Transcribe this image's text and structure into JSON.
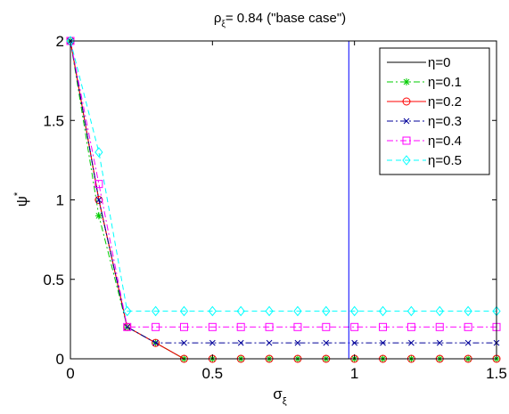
{
  "chart_data": {
    "type": "line",
    "title": "ρξ= 0.84 (\"base case\")",
    "title_parts": {
      "symbol": "ρ",
      "subscript": "ξ",
      "rest": "= 0.84 (\"base case\")"
    },
    "xlabel": "σξ",
    "xlabel_parts": {
      "symbol": "σ",
      "subscript": "ξ"
    },
    "ylabel": "ψ*",
    "ylabel_parts": {
      "symbol": "ψ",
      "superscript": "*"
    },
    "xlim": [
      0,
      1.5
    ],
    "ylim": [
      0,
      2
    ],
    "xticks": [
      0,
      0.5,
      1,
      1.5
    ],
    "xtick_labels": [
      "0",
      "0.5",
      "1",
      "1.5"
    ],
    "yticks": [
      0,
      0.5,
      1,
      1.5,
      2
    ],
    "ytick_labels": [
      "0",
      "0.5",
      "1",
      "1.5",
      "2"
    ],
    "grid": false,
    "legend_position": "top-right",
    "vertical_line": {
      "x": 0.98,
      "color": "#0000ff"
    },
    "x": [
      0,
      0.1,
      0.2,
      0.3,
      0.4,
      0.5,
      0.6,
      0.7,
      0.8,
      0.9,
      1.0,
      1.1,
      1.2,
      1.3,
      1.4,
      1.5
    ],
    "series": [
      {
        "name": "η=0",
        "label_symbol": "η",
        "label_rest": "=0",
        "color": "#000000",
        "line": "solid",
        "marker": "none",
        "values": [
          2,
          1.0,
          0.2,
          0.1,
          0,
          0,
          0,
          0,
          0,
          0,
          0,
          0,
          0,
          0,
          0,
          0
        ]
      },
      {
        "name": "η=0.1",
        "label_symbol": "η",
        "label_rest": "=0.1",
        "color": "#00cc00",
        "line": "dashdot",
        "marker": "star",
        "values": [
          2,
          0.9,
          0.2,
          0.1,
          0,
          0,
          0,
          0,
          0,
          0,
          0,
          0,
          0,
          0,
          0,
          0
        ]
      },
      {
        "name": "η=0.2",
        "label_symbol": "η",
        "label_rest": "=0.2",
        "color": "#ff0000",
        "line": "solid",
        "marker": "circle",
        "values": [
          2,
          1.0,
          0.2,
          0.1,
          0,
          0,
          0,
          0,
          0,
          0,
          0,
          0,
          0,
          0,
          0,
          0
        ]
      },
      {
        "name": "η=0.3",
        "label_symbol": "η",
        "label_rest": "=0.3",
        "color": "#000099",
        "line": "dashdot",
        "marker": "x",
        "values": [
          2,
          1.0,
          0.2,
          0.1,
          0.1,
          0.1,
          0.1,
          0.1,
          0.1,
          0.1,
          0.1,
          0.1,
          0.1,
          0.1,
          0.1,
          0.1
        ]
      },
      {
        "name": "η=0.4",
        "label_symbol": "η",
        "label_rest": "=0.4",
        "color": "#ff00ff",
        "line": "dashdot",
        "marker": "square",
        "values": [
          2,
          1.1,
          0.2,
          0.2,
          0.2,
          0.2,
          0.2,
          0.2,
          0.2,
          0.2,
          0.2,
          0.2,
          0.2,
          0.2,
          0.2,
          0.2
        ]
      },
      {
        "name": "η=0.5",
        "label_symbol": "η",
        "label_rest": "=0.5",
        "color": "#00ffff",
        "line": "dashed",
        "marker": "diamond",
        "values": [
          2,
          1.3,
          0.3,
          0.3,
          0.3,
          0.3,
          0.3,
          0.3,
          0.3,
          0.3,
          0.3,
          0.3,
          0.3,
          0.3,
          0.3,
          0.3
        ]
      }
    ]
  }
}
